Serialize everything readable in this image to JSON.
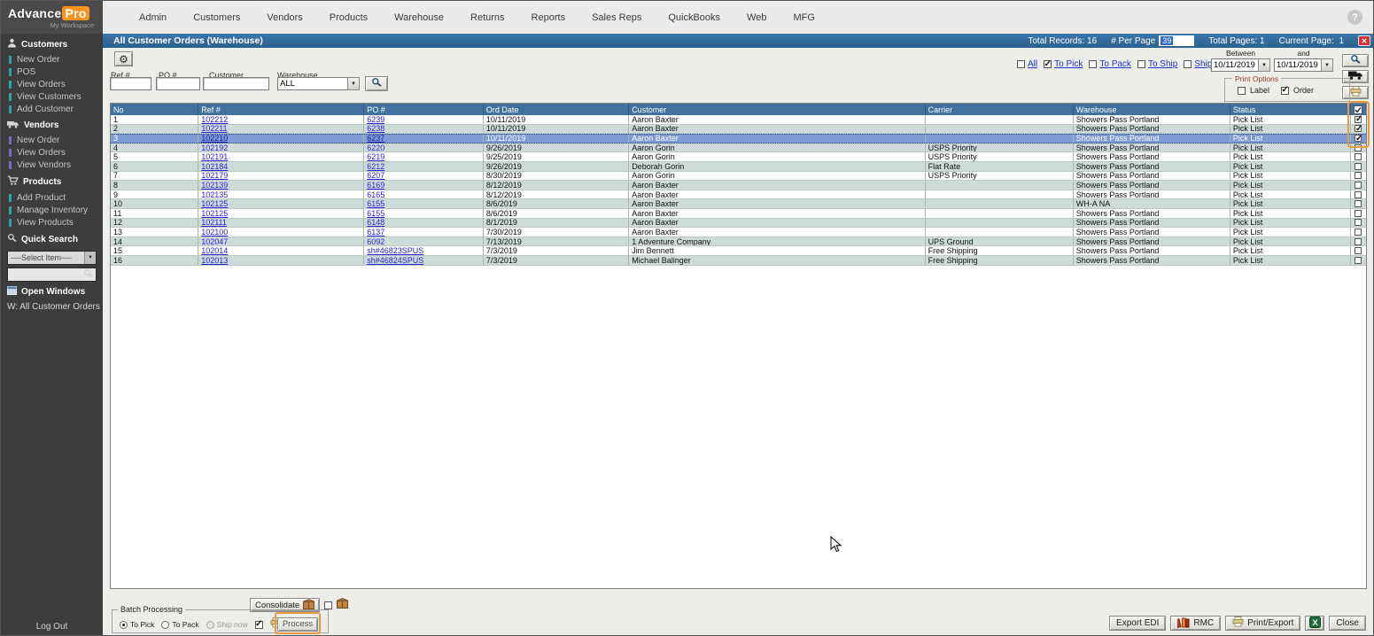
{
  "logo": {
    "brand": "Advance",
    "brand_accent": "Pro",
    "subtitle": "My Workspace"
  },
  "glyphs": {
    "help": "?",
    "close": "✕",
    "gear": "⚙",
    "dropdown": "▼"
  },
  "top_nav": {
    "items": [
      "Admin",
      "Customers",
      "Vendors",
      "Products",
      "Warehouse",
      "Returns",
      "Reports",
      "Sales Reps",
      "QuickBooks",
      "Web",
      "MFG"
    ]
  },
  "sidebar": {
    "sections": [
      {
        "name": "customers",
        "label": "Customers",
        "icon": "person-icon",
        "accent": "#2fa3a3",
        "items": [
          "New Order",
          "POS",
          "View Orders",
          "View Customers",
          "Add Customer"
        ]
      },
      {
        "name": "vendors",
        "label": "Vendors",
        "icon": "truck-icon",
        "accent": "#7b6ac4",
        "items": [
          "New Order",
          "View Orders",
          "View Vendors"
        ]
      },
      {
        "name": "products",
        "label": "Products",
        "icon": "cart-icon",
        "accent": "#2fa3a3",
        "items": [
          "Add Product",
          "Manage Inventory",
          "View Products"
        ]
      }
    ],
    "quick_search": {
      "label": "Quick Search",
      "select_value": "----Select Item----"
    },
    "open_windows": {
      "label": "Open Windows",
      "items": [
        "W: All Customer Orders"
      ]
    },
    "logout_label": "Log Out"
  },
  "title_bar": {
    "title": "All Customer Orders (Warehouse)",
    "total_records": "Total Records: 16",
    "per_page_label": "# Per Page",
    "per_page_value": "39",
    "total_pages": "Total Pages: 1",
    "current_page_label": "Current Page:",
    "current_page_value": "1"
  },
  "filters": {
    "ref_label": "Ref #",
    "po_label": "PO #",
    "customer_label": "Customer",
    "warehouse_label": "Warehouse",
    "warehouse_value": "ALL"
  },
  "status_filters": {
    "options": [
      {
        "label": "All",
        "checked": false
      },
      {
        "label": "To Pick",
        "checked": true
      },
      {
        "label": "To Pack",
        "checked": false
      },
      {
        "label": "To Ship",
        "checked": false
      },
      {
        "label": "Shipped",
        "checked": false
      }
    ],
    "between_label": "Between",
    "and_label": "and",
    "date_from": "10/11/2019",
    "date_to": "10/11/2019"
  },
  "print_options": {
    "label": "Print Options",
    "options": [
      {
        "label": "Label",
        "checked": false
      },
      {
        "label": "Order",
        "checked": true
      }
    ]
  },
  "table": {
    "columns": [
      "No",
      "Ref #",
      "PO #",
      "Ord Date",
      "Customer",
      "Carrier",
      "Warehouse",
      "Status"
    ],
    "rows": [
      {
        "no": "1",
        "ref": "102212",
        "po": "6239",
        "date": "10/11/2019",
        "customer": "Aaron Baxter",
        "carrier": "",
        "warehouse": "Showers Pass Portland",
        "status": "Pick List",
        "checked": true,
        "selected": false
      },
      {
        "no": "2",
        "ref": "102211",
        "po": "6238",
        "date": "10/11/2019",
        "customer": "Aaron Baxter",
        "carrier": "",
        "warehouse": "Showers Pass Portland",
        "status": "Pick List",
        "checked": true,
        "selected": false
      },
      {
        "no": "3",
        "ref": "102210",
        "po": "6237",
        "date": "10/11/2019",
        "customer": "Aaron Baxter",
        "carrier": "",
        "warehouse": "Showers Pass Portland",
        "status": "Pick List",
        "checked": true,
        "selected": true
      },
      {
        "no": "4",
        "ref": "102192",
        "po": "6220",
        "date": "9/26/2019",
        "customer": "Aaron Gorin",
        "carrier": "USPS Priority",
        "warehouse": "Showers Pass Portland",
        "status": "Pick List",
        "checked": false,
        "selected": false
      },
      {
        "no": "5",
        "ref": "102191",
        "po": "6219",
        "date": "9/25/2019",
        "customer": "Aaron Gorin",
        "carrier": "USPS Priority",
        "warehouse": "Showers Pass Portland",
        "status": "Pick List",
        "checked": false,
        "selected": false
      },
      {
        "no": "6",
        "ref": "102184",
        "po": "6212",
        "date": "9/26/2019",
        "customer": "Deborah Gorin",
        "carrier": "Flat Rate",
        "warehouse": "Showers Pass Portland",
        "status": "Pick List",
        "checked": false,
        "selected": false
      },
      {
        "no": "7",
        "ref": "102179",
        "po": "6207",
        "date": "8/30/2019",
        "customer": "Aaron Gorin",
        "carrier": "USPS Priority",
        "warehouse": "Showers Pass Portland",
        "status": "Pick List",
        "checked": false,
        "selected": false
      },
      {
        "no": "8",
        "ref": "102139",
        "po": "6169",
        "date": "8/12/2019",
        "customer": "Aaron Baxter",
        "carrier": "",
        "warehouse": "Showers Pass Portland",
        "status": "Pick List",
        "checked": false,
        "selected": false
      },
      {
        "no": "9",
        "ref": "102135",
        "po": "6165",
        "date": "8/12/2019",
        "customer": "Aaron Baxter",
        "carrier": "",
        "warehouse": "Showers Pass Portland",
        "status": "Pick List",
        "checked": false,
        "selected": false
      },
      {
        "no": "10",
        "ref": "102125",
        "po": "6155",
        "date": "8/6/2019",
        "customer": "Aaron Baxter",
        "carrier": "",
        "warehouse": "WH-A  NA",
        "status": "Pick List",
        "checked": false,
        "selected": false
      },
      {
        "no": "11",
        "ref": "102125",
        "po": "6155",
        "date": "8/6/2019",
        "customer": "Aaron Baxter",
        "carrier": "",
        "warehouse": "Showers Pass Portland",
        "status": "Pick List",
        "checked": false,
        "selected": false
      },
      {
        "no": "12",
        "ref": "102111",
        "po": "6148",
        "date": "8/1/2019",
        "customer": "Aaron Baxter",
        "carrier": "",
        "warehouse": "Showers Pass Portland",
        "status": "Pick List",
        "checked": false,
        "selected": false
      },
      {
        "no": "13",
        "ref": "102100",
        "po": "6137",
        "date": "7/30/2019",
        "customer": "Aaron Baxter",
        "carrier": "",
        "warehouse": "Showers Pass Portland",
        "status": "Pick List",
        "checked": false,
        "selected": false
      },
      {
        "no": "14",
        "ref": "102047",
        "po": "6092",
        "date": "7/13/2019",
        "customer": "1 Adventure Company",
        "carrier": "UPS Ground",
        "warehouse": "Showers Pass Portland",
        "status": "Pick List",
        "checked": false,
        "selected": false
      },
      {
        "no": "15",
        "ref": "102014",
        "po": "sh#46823SPUS",
        "date": "7/3/2019",
        "customer": "Jim Bennett",
        "carrier": "Free Shipping",
        "warehouse": "Showers Pass Portland",
        "status": "Pick List",
        "checked": false,
        "selected": false
      },
      {
        "no": "16",
        "ref": "102013",
        "po": "sh#46824SPUS",
        "date": "7/3/2019",
        "customer": "Michael Balinger",
        "carrier": "Free Shipping",
        "warehouse": "Showers Pass Portland",
        "status": "Pick List",
        "checked": false,
        "selected": false
      }
    ]
  },
  "footer": {
    "consolidate_label": "Consolidate",
    "consolidate_checkbox_checked": false,
    "batch": {
      "label": "Batch Processing",
      "radios": [
        {
          "label": "To Pick",
          "selected": true,
          "disabled": false
        },
        {
          "label": "To Pack",
          "selected": false,
          "disabled": false
        },
        {
          "label": "Ship now",
          "selected": false,
          "disabled": true
        }
      ],
      "print_checked": true,
      "process_label": "Process"
    },
    "buttons": {
      "export_edi": "Export EDI",
      "rmc": "RMC",
      "print_export": "Print/Export",
      "close": "Close"
    }
  },
  "colors": {
    "title_bar": "#2f6899",
    "table_header": "#41719c",
    "selected_row": "#7e9bd4",
    "alt_row": "#cfdbd8",
    "link": "#2824d6",
    "accent_orange": "#e89a3f",
    "logo_orange": "#f7941e",
    "sidebar_bg": "#3d3d3d"
  }
}
